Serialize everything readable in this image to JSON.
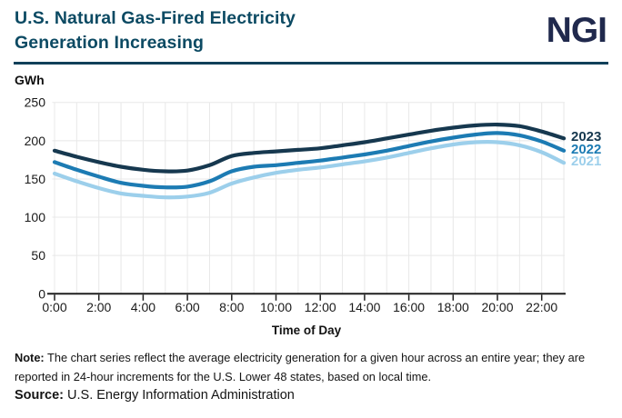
{
  "header": {
    "title_line1": "U.S. Natural Gas-Fired Electricity",
    "title_line2": "Generation Increasing",
    "logo_text": "NGI"
  },
  "colors": {
    "title": "#0c4a63",
    "logo": "#20294d",
    "separator": "#10405a",
    "grid": "#e8e8e8",
    "axis": "#1f1f1f",
    "tick_text": "#1a1a1a"
  },
  "chart_data": {
    "type": "line",
    "title": "U.S. Natural Gas-Fired Electricity Generation Increasing",
    "ylabel": "GWh",
    "xlabel": "Time of Day",
    "ylim": [
      0,
      250
    ],
    "yticks": [
      0,
      50,
      100,
      150,
      200,
      250
    ],
    "grid": true,
    "legend_position": "right-of-line-ends",
    "x_hours": [
      0,
      1,
      2,
      3,
      4,
      5,
      6,
      7,
      8,
      9,
      10,
      11,
      12,
      13,
      14,
      15,
      16,
      17,
      18,
      19,
      20,
      21,
      22,
      23
    ],
    "xtick_hours": [
      0,
      2,
      4,
      6,
      8,
      10,
      12,
      14,
      16,
      18,
      20,
      22
    ],
    "xtick_labels": [
      "0:00",
      "2:00",
      "4:00",
      "6:00",
      "8:00",
      "10:00",
      "12:00",
      "14:00",
      "16:00",
      "18:00",
      "20:00",
      "22:00"
    ],
    "series": [
      {
        "name": "2021",
        "color": "#9ccfeb",
        "values": [
          157,
          147,
          138,
          131,
          128,
          126,
          127,
          132,
          144,
          152,
          158,
          162,
          165,
          169,
          173,
          178,
          184,
          190,
          195,
          198,
          198,
          194,
          185,
          171
        ]
      },
      {
        "name": "2022",
        "color": "#1c7bb3",
        "values": [
          172,
          162,
          153,
          145,
          141,
          139,
          140,
          147,
          160,
          166,
          168,
          171,
          174,
          178,
          182,
          187,
          193,
          199,
          204,
          208,
          210,
          207,
          199,
          187
        ]
      },
      {
        "name": "2023",
        "color": "#16384f",
        "values": [
          187,
          179,
          172,
          166,
          162,
          160,
          161,
          168,
          180,
          184,
          186,
          188,
          190,
          194,
          198,
          203,
          208,
          213,
          217,
          220,
          221,
          219,
          212,
          203
        ]
      }
    ],
    "legend_order": [
      "2023",
      "2022",
      "2021"
    ]
  },
  "footer": {
    "note_label": "Note:",
    "note_text": " The chart series reflect the average electricity generation for a given hour across an entire year; they are reported in 24-hour increments for the U.S. Lower 48 states, based on local time.",
    "source_label": "Source:",
    "source_text": " U.S. Energy Information Administration"
  }
}
